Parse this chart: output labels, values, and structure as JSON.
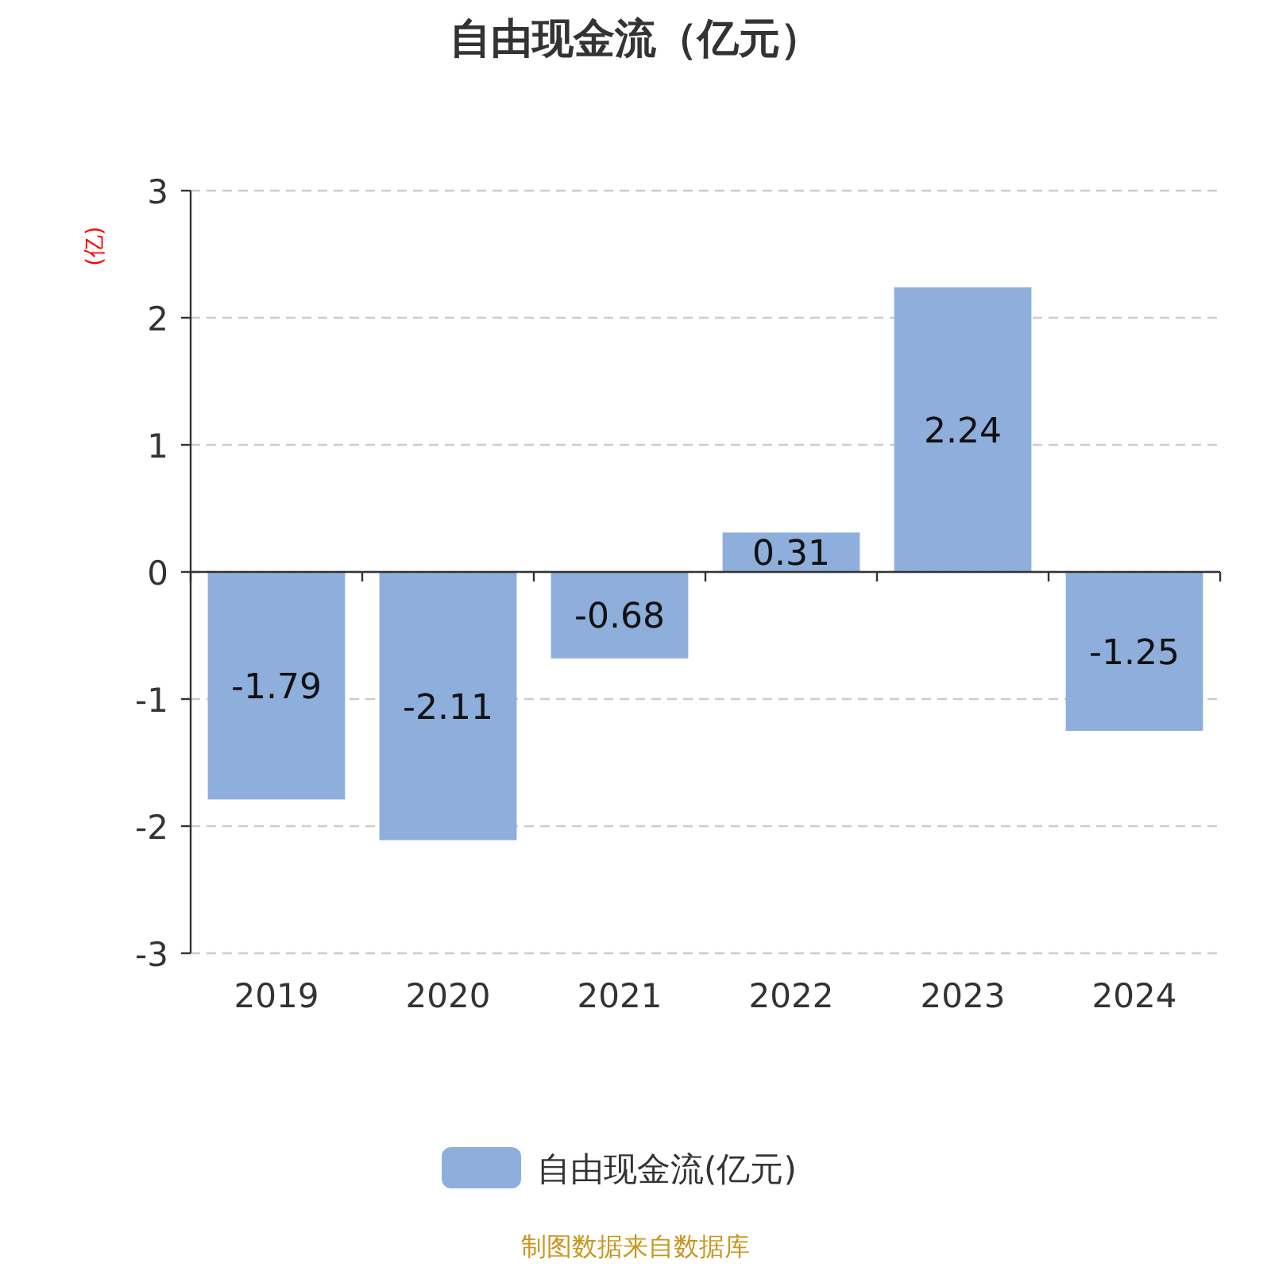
{
  "chart_data": {
    "type": "bar",
    "title": "自由现金流（亿元）",
    "ylabel": "(亿)",
    "categories": [
      "2019",
      "2020",
      "2021",
      "2022",
      "2023",
      "2024"
    ],
    "series": [
      {
        "name": "自由现金流(亿元)",
        "color": "#8eaedb",
        "values": [
          -1.79,
          -2.11,
          -0.68,
          0.31,
          2.24,
          -1.25
        ]
      }
    ],
    "ylim": [
      -3,
      3
    ],
    "yticks": [
      -3,
      -2,
      -1,
      0,
      1,
      2,
      3
    ],
    "grid": "y",
    "legend": "bottom",
    "data_labels": true,
    "annotations": [
      "制图数据来自数据库"
    ]
  }
}
